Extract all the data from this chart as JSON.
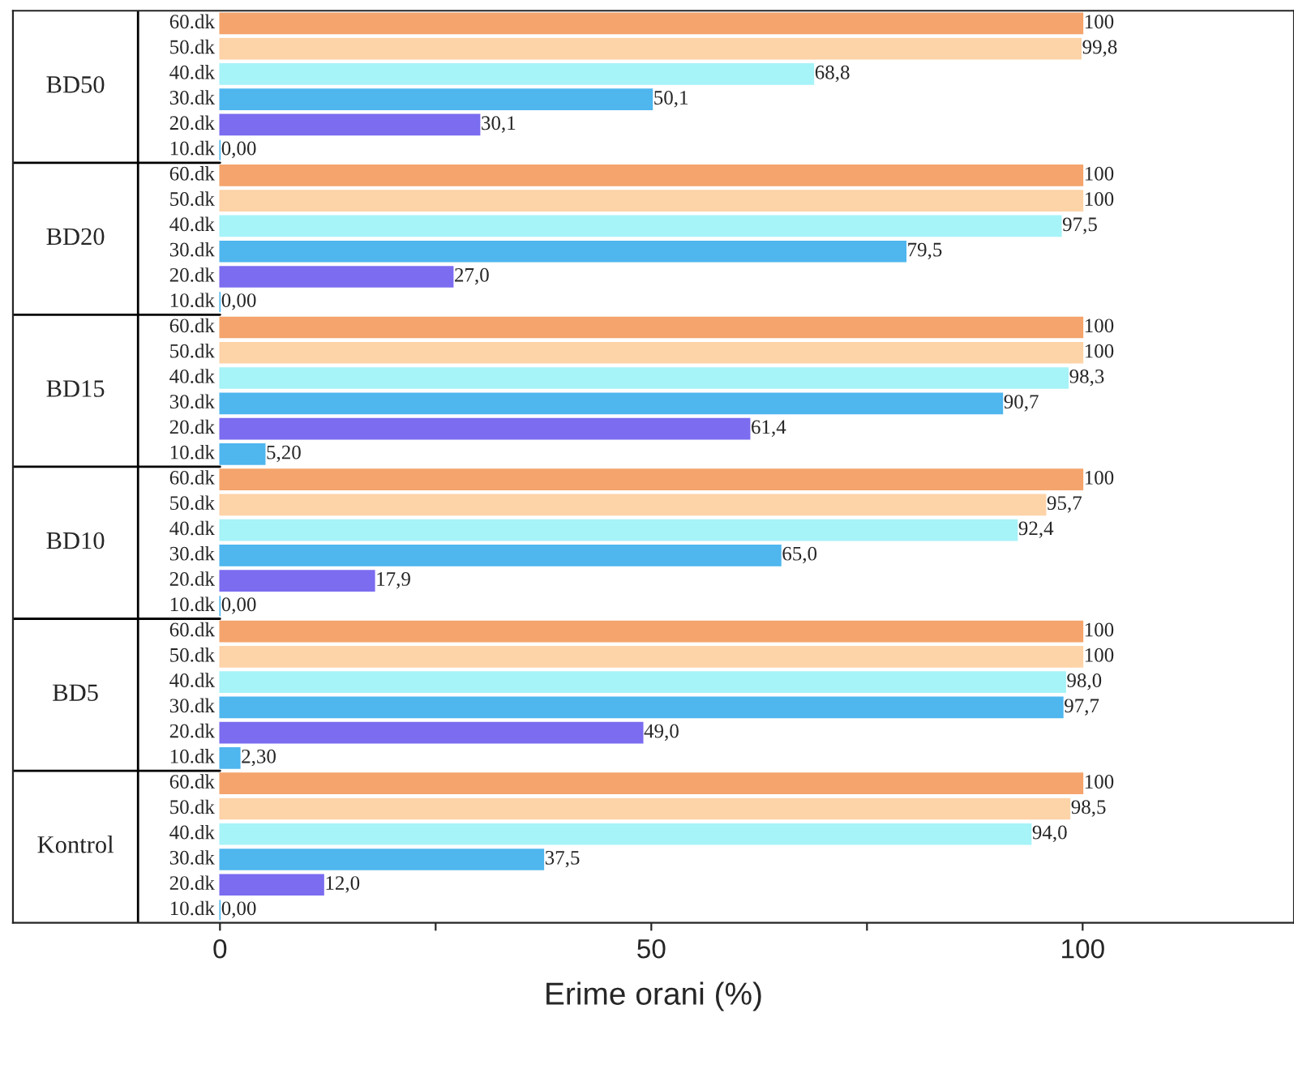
{
  "chart_data": {
    "type": "bar",
    "orientation": "horizontal",
    "xlabel": "Erime orani (%)",
    "categories": [
      "60.dk",
      "50.dk",
      "40.dk",
      "30.dk",
      "20.dk",
      "10.dk",
      "60.dk",
      "50.dk",
      "40.dk",
      "30.dk",
      "20.dk",
      "10.dk",
      "60.dk",
      "50.dk",
      "40.dk",
      "30.dk",
      "20.dk",
      "10.dk",
      "60.dk",
      "50.dk",
      "40.dk",
      "30.dk",
      "20.dk",
      "10.dk",
      "60.dk",
      "50.dk",
      "40.dk",
      "30.dk",
      "20.dk",
      "10.dk",
      "60.dk",
      "50.dk",
      "40.dk",
      "30.dk",
      "20.dk",
      "10.dk"
    ],
    "values": [
      100,
      99.8,
      68.8,
      50.1,
      30.1,
      0,
      100,
      100,
      97.5,
      79.5,
      27.0,
      0,
      100,
      100,
      98.3,
      90.7,
      61.4,
      5.2,
      100,
      95.7,
      92.4,
      65.0,
      17.9,
      0,
      100,
      100,
      98.0,
      97.7,
      49.0,
      2.3,
      100,
      98.5,
      94.0,
      37.5,
      12.0,
      0
    ],
    "value_labels": [
      "100",
      "99,8",
      "68,8",
      "50,1",
      "30,1",
      "0,00",
      "100",
      "100",
      "97,5",
      "79,5",
      "27,0",
      "0,00",
      "100",
      "100",
      "98,3",
      "90,7",
      "61,4",
      "5,20",
      "100",
      "95,7",
      "92,4",
      "65,0",
      "17,9",
      "0,00",
      "100",
      "100",
      "98,0",
      "97,7",
      "49,0",
      "2,30",
      "100",
      "98,5",
      "94,0",
      "37,5",
      "12,0",
      "0,00"
    ],
    "colors": [
      "#f4a46c",
      "#fdd3a8",
      "#a6f3f8",
      "#4fb6ee",
      "#7b6cf0",
      "#4fb6ee",
      "#f4a46c",
      "#fdd3a8",
      "#a6f3f8",
      "#4fb6ee",
      "#7b6cf0",
      "#4fb6ee",
      "#f4a46c",
      "#fdd3a8",
      "#a6f3f8",
      "#4fb6ee",
      "#7b6cf0",
      "#4fb6ee",
      "#f4a46c",
      "#fdd3a8",
      "#a6f3f8",
      "#4fb6ee",
      "#7b6cf0",
      "#4fb6ee",
      "#f4a46c",
      "#fdd3a8",
      "#a6f3f8",
      "#4fb6ee",
      "#7b6cf0",
      "#4fb6ee",
      "#f4a46c",
      "#fdd3a8",
      "#a6f3f8",
      "#4fb6ee",
      "#7b6cf0",
      "#4fb6ee"
    ],
    "annotations": [
      "BD50",
      "BD20",
      "BD15",
      "BD10",
      "BD5",
      "Kontrol"
    ],
    "xlim": [
      -24,
      124.5
    ],
    "xticks": [
      0,
      {
        "value": 25,
        "label": null
      },
      50,
      {
        "value": 75,
        "label": null
      },
      100
    ],
    "grid": false
  }
}
